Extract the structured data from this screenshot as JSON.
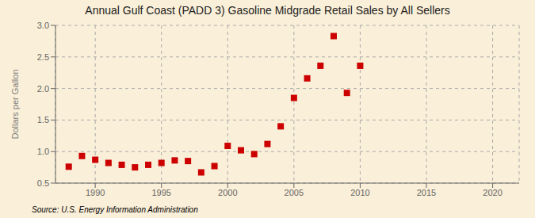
{
  "chart_data": {
    "type": "scatter",
    "title": "Annual Gulf Coast (PADD 3) Gasoline Midgrade Retail Sales by All Sellers",
    "ylabel": "Dollars per Gallon",
    "source": "Source: U.S. Energy Information Administration",
    "x": [
      1988,
      1989,
      1990,
      1991,
      1992,
      1993,
      1994,
      1995,
      1996,
      1997,
      1998,
      1999,
      2000,
      2001,
      2002,
      2003,
      2004,
      2005,
      2006,
      2007,
      2008,
      2009,
      2010
    ],
    "values": [
      0.76,
      0.93,
      0.87,
      0.82,
      0.79,
      0.75,
      0.79,
      0.82,
      0.86,
      0.85,
      0.67,
      0.77,
      1.09,
      1.02,
      0.96,
      1.12,
      1.4,
      1.85,
      2.16,
      2.36,
      2.83,
      1.93,
      2.36
    ],
    "color": "#cc0000",
    "marker": "square",
    "xlim": [
      1987,
      2022
    ],
    "ylim": [
      0.5,
      3.0
    ],
    "xticks": [
      1990,
      1995,
      2000,
      2005,
      2010,
      2015,
      2020
    ],
    "yticks": [
      0.5,
      {
        "value": 1.0,
        "label": "1.0"
      },
      1.5,
      {
        "value": 2.0,
        "label": "2.0"
      },
      2.5,
      {
        "value": 3.0,
        "label": "3.0"
      }
    ],
    "grid": true
  }
}
